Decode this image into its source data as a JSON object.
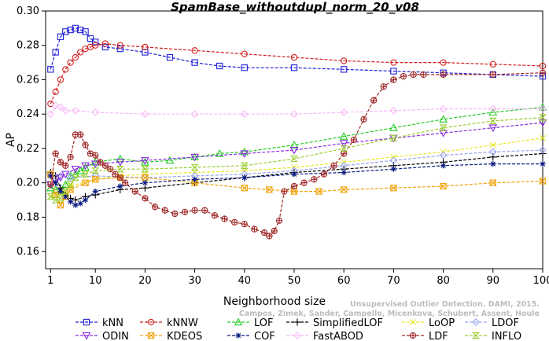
{
  "chart_data": {
    "type": "line",
    "title": "SpamBase_withoutdupl_norm_20_v08",
    "xlabel": "Neighborhood size",
    "ylabel": "AP",
    "xlim": [
      0,
      100
    ],
    "ylim": [
      0.15,
      0.3
    ],
    "xticks": [
      1,
      10,
      20,
      30,
      40,
      50,
      60,
      70,
      80,
      90,
      100
    ],
    "yticks": [
      0.16,
      0.18,
      0.2,
      0.22,
      0.24,
      0.26,
      0.28,
      0.3
    ],
    "ytick_labels": [
      "0.16",
      "0.18",
      "0.20",
      "0.22",
      "0.24",
      "0.26",
      "0.28",
      "0.30"
    ],
    "grid": false,
    "legend_position": "bottom",
    "series": [
      {
        "name": "kNN",
        "color": "#1f1fd8",
        "marker": "square",
        "points": [
          [
            1,
            0.266
          ],
          [
            2,
            0.276
          ],
          [
            3,
            0.285
          ],
          [
            4,
            0.288
          ],
          [
            5,
            0.289
          ],
          [
            6,
            0.29
          ],
          [
            7,
            0.289
          ],
          [
            8,
            0.288
          ],
          [
            9,
            0.284
          ],
          [
            10,
            0.282
          ],
          [
            12,
            0.279
          ],
          [
            15,
            0.278
          ],
          [
            20,
            0.276
          ],
          [
            25,
            0.273
          ],
          [
            30,
            0.27
          ],
          [
            35,
            0.268
          ],
          [
            40,
            0.267
          ],
          [
            50,
            0.267
          ],
          [
            60,
            0.266
          ],
          [
            70,
            0.265
          ],
          [
            80,
            0.264
          ],
          [
            90,
            0.263
          ],
          [
            100,
            0.262
          ]
        ]
      },
      {
        "name": "kNNW",
        "color": "#d01f1f",
        "marker": "circle",
        "points": [
          [
            1,
            0.246
          ],
          [
            2,
            0.253
          ],
          [
            3,
            0.26
          ],
          [
            4,
            0.266
          ],
          [
            5,
            0.27
          ],
          [
            6,
            0.273
          ],
          [
            7,
            0.276
          ],
          [
            8,
            0.278
          ],
          [
            9,
            0.279
          ],
          [
            10,
            0.28
          ],
          [
            12,
            0.281
          ],
          [
            15,
            0.28
          ],
          [
            20,
            0.279
          ],
          [
            30,
            0.277
          ],
          [
            40,
            0.275
          ],
          [
            50,
            0.273
          ],
          [
            60,
            0.271
          ],
          [
            70,
            0.27
          ],
          [
            80,
            0.27
          ],
          [
            90,
            0.269
          ],
          [
            100,
            0.268
          ]
        ]
      },
      {
        "name": "LOF",
        "color": "#22cc22",
        "marker": "triangle",
        "points": [
          [
            1,
            0.197
          ],
          [
            2,
            0.196
          ],
          [
            3,
            0.195
          ],
          [
            4,
            0.199
          ],
          [
            5,
            0.204
          ],
          [
            6,
            0.205
          ],
          [
            7,
            0.207
          ],
          [
            8,
            0.209
          ],
          [
            10,
            0.212
          ],
          [
            15,
            0.214
          ],
          [
            20,
            0.212
          ],
          [
            25,
            0.213
          ],
          [
            30,
            0.215
          ],
          [
            35,
            0.217
          ],
          [
            40,
            0.218
          ],
          [
            50,
            0.222
          ],
          [
            60,
            0.227
          ],
          [
            70,
            0.232
          ],
          [
            80,
            0.237
          ],
          [
            90,
            0.241
          ],
          [
            100,
            0.244
          ]
        ]
      },
      {
        "name": "SimplifiedLOF",
        "color": "#000000",
        "marker": "plus",
        "points": [
          [
            1,
            0.206
          ],
          [
            2,
            0.204
          ],
          [
            3,
            0.197
          ],
          [
            4,
            0.193
          ],
          [
            5,
            0.191
          ],
          [
            6,
            0.19
          ],
          [
            8,
            0.192
          ],
          [
            10,
            0.193
          ],
          [
            15,
            0.196
          ],
          [
            20,
            0.197
          ],
          [
            30,
            0.2
          ],
          [
            40,
            0.203
          ],
          [
            50,
            0.206
          ],
          [
            60,
            0.208
          ],
          [
            70,
            0.21
          ],
          [
            80,
            0.212
          ],
          [
            90,
            0.215
          ],
          [
            100,
            0.217
          ]
        ]
      },
      {
        "name": "LoOP",
        "color": "#e6e62a",
        "marker": "x",
        "points": [
          [
            1,
            0.192
          ],
          [
            3,
            0.194
          ],
          [
            5,
            0.198
          ],
          [
            10,
            0.202
          ],
          [
            15,
            0.204
          ],
          [
            20,
            0.205
          ],
          [
            30,
            0.206
          ],
          [
            40,
            0.207
          ],
          [
            50,
            0.209
          ],
          [
            60,
            0.212
          ],
          [
            70,
            0.215
          ],
          [
            80,
            0.218
          ],
          [
            90,
            0.222
          ],
          [
            100,
            0.226
          ]
        ]
      },
      {
        "name": "LDOF",
        "color": "#9aa6ee",
        "marker": "diamond",
        "points": [
          [
            1,
            0.205
          ],
          [
            3,
            0.204
          ],
          [
            5,
            0.203
          ],
          [
            10,
            0.204
          ],
          [
            20,
            0.203
          ],
          [
            30,
            0.204
          ],
          [
            40,
            0.205
          ],
          [
            50,
            0.207
          ],
          [
            60,
            0.21
          ],
          [
            70,
            0.213
          ],
          [
            80,
            0.216
          ],
          [
            90,
            0.218
          ],
          [
            100,
            0.219
          ]
        ]
      },
      {
        "name": "ODIN",
        "color": "#8a2be2",
        "marker": "triangle-down",
        "points": [
          [
            1,
            0.199
          ],
          [
            2,
            0.201
          ],
          [
            3,
            0.203
          ],
          [
            4,
            0.205
          ],
          [
            6,
            0.208
          ],
          [
            8,
            0.21
          ],
          [
            10,
            0.211
          ],
          [
            15,
            0.212
          ],
          [
            20,
            0.213
          ],
          [
            30,
            0.215
          ],
          [
            40,
            0.217
          ],
          [
            50,
            0.219
          ],
          [
            60,
            0.223
          ],
          [
            70,
            0.226
          ],
          [
            80,
            0.229
          ],
          [
            90,
            0.232
          ],
          [
            100,
            0.235
          ]
        ]
      },
      {
        "name": "KDEOS",
        "color": "#f0a30a",
        "marker": "square-x",
        "points": [
          [
            1,
            0.205
          ],
          [
            2,
            0.193
          ],
          [
            3,
            0.187
          ],
          [
            4,
            0.192
          ],
          [
            5,
            0.196
          ],
          [
            8,
            0.2
          ],
          [
            10,
            0.202
          ],
          [
            15,
            0.203
          ],
          [
            20,
            0.203
          ],
          [
            30,
            0.2
          ],
          [
            40,
            0.197
          ],
          [
            45,
            0.196
          ],
          [
            50,
            0.195
          ],
          [
            55,
            0.195
          ],
          [
            60,
            0.196
          ],
          [
            70,
            0.197
          ],
          [
            80,
            0.198
          ],
          [
            90,
            0.2
          ],
          [
            100,
            0.201
          ]
        ]
      },
      {
        "name": "COF",
        "color": "#0a1a80",
        "marker": "asterisk",
        "points": [
          [
            1,
            0.204
          ],
          [
            2,
            0.2
          ],
          [
            3,
            0.195
          ],
          [
            4,
            0.192
          ],
          [
            5,
            0.189
          ],
          [
            6,
            0.187
          ],
          [
            7,
            0.188
          ],
          [
            8,
            0.19
          ],
          [
            10,
            0.195
          ],
          [
            15,
            0.198
          ],
          [
            20,
            0.2
          ],
          [
            30,
            0.202
          ],
          [
            40,
            0.203
          ],
          [
            50,
            0.205
          ],
          [
            60,
            0.206
          ],
          [
            70,
            0.208
          ],
          [
            80,
            0.21
          ],
          [
            90,
            0.211
          ],
          [
            100,
            0.211
          ]
        ]
      },
      {
        "name": "FastABOD",
        "color": "#f7b8f7",
        "marker": "diamond",
        "points": [
          [
            1,
            0.24
          ],
          [
            2,
            0.245
          ],
          [
            3,
            0.244
          ],
          [
            4,
            0.242
          ],
          [
            6,
            0.242
          ],
          [
            10,
            0.241
          ],
          [
            20,
            0.24
          ],
          [
            30,
            0.24
          ],
          [
            40,
            0.24
          ],
          [
            50,
            0.24
          ],
          [
            60,
            0.241
          ],
          [
            70,
            0.242
          ],
          [
            80,
            0.243
          ],
          [
            90,
            0.243
          ],
          [
            100,
            0.243
          ]
        ]
      },
      {
        "name": "LDF",
        "color": "#a02a2a",
        "marker": "circle-plus",
        "points": [
          [
            1,
            0.199
          ],
          [
            2,
            0.217
          ],
          [
            3,
            0.212
          ],
          [
            4,
            0.21
          ],
          [
            5,
            0.215
          ],
          [
            6,
            0.228
          ],
          [
            7,
            0.228
          ],
          [
            8,
            0.222
          ],
          [
            9,
            0.217
          ],
          [
            10,
            0.216
          ],
          [
            11,
            0.212
          ],
          [
            12,
            0.21
          ],
          [
            13,
            0.208
          ],
          [
            14,
            0.205
          ],
          [
            15,
            0.203
          ],
          [
            16,
            0.2
          ],
          [
            18,
            0.195
          ],
          [
            20,
            0.191
          ],
          [
            22,
            0.186
          ],
          [
            24,
            0.184
          ],
          [
            26,
            0.182
          ],
          [
            28,
            0.183
          ],
          [
            30,
            0.184
          ],
          [
            32,
            0.184
          ],
          [
            34,
            0.181
          ],
          [
            36,
            0.179
          ],
          [
            38,
            0.177
          ],
          [
            40,
            0.176
          ],
          [
            42,
            0.173
          ],
          [
            44,
            0.171
          ],
          [
            45,
            0.169
          ],
          [
            46,
            0.172
          ],
          [
            47,
            0.178
          ],
          [
            48,
            0.195
          ],
          [
            50,
            0.198
          ],
          [
            52,
            0.2
          ],
          [
            54,
            0.202
          ],
          [
            56,
            0.205
          ],
          [
            58,
            0.21
          ],
          [
            60,
            0.217
          ],
          [
            62,
            0.225
          ],
          [
            64,
            0.237
          ],
          [
            66,
            0.248
          ],
          [
            68,
            0.256
          ],
          [
            70,
            0.26
          ],
          [
            72,
            0.262
          ],
          [
            74,
            0.263
          ],
          [
            76,
            0.263
          ],
          [
            80,
            0.263
          ],
          [
            90,
            0.263
          ],
          [
            100,
            0.264
          ]
        ]
      },
      {
        "name": "INFLO",
        "color": "#9acd32",
        "marker": "hourglass",
        "points": [
          [
            1,
            0.192
          ],
          [
            2,
            0.19
          ],
          [
            3,
            0.191
          ],
          [
            4,
            0.195
          ],
          [
            5,
            0.199
          ],
          [
            6,
            0.203
          ],
          [
            8,
            0.205
          ],
          [
            10,
            0.207
          ],
          [
            15,
            0.208
          ],
          [
            20,
            0.208
          ],
          [
            30,
            0.209
          ],
          [
            40,
            0.21
          ],
          [
            50,
            0.214
          ],
          [
            60,
            0.22
          ],
          [
            70,
            0.226
          ],
          [
            80,
            0.232
          ],
          [
            90,
            0.236
          ],
          [
            100,
            0.238
          ]
        ]
      }
    ],
    "legend_rows": [
      [
        "kNN",
        "kNNW",
        "LOF",
        "SimplifiedLOF",
        "LoOP",
        "LDOF"
      ],
      [
        "ODIN",
        "KDEOS",
        "COF",
        "FastABOD",
        "LDF",
        "INFLO"
      ]
    ]
  },
  "watermark": {
    "line1": "Unsupervised Outlier Detection. DAMI, 2015.",
    "line2": "Campos, Zimek, Sander, Campello, Micenkova, Schubert, Assent, Houle"
  }
}
